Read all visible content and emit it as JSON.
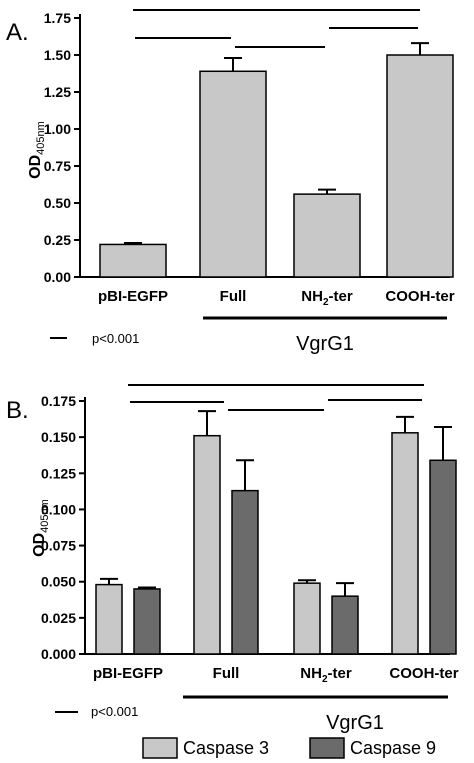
{
  "chart_data": [
    {
      "type": "bar",
      "panel_label": "A.",
      "ylabel_main": "OD",
      "ylabel_sub": "405nm",
      "ylim": [
        0,
        1.75
      ],
      "yticks": [
        "0.00",
        "0.25",
        "0.50",
        "0.75",
        "1.00",
        "1.25",
        "1.50",
        "1.75"
      ],
      "categories": [
        {
          "label": "pBI-EGFP"
        },
        {
          "label": "Full"
        },
        {
          "label": "NH",
          "sub": "2",
          "suffix": "-ter"
        },
        {
          "label": "COOH-ter"
        }
      ],
      "series": [
        {
          "values": [
            0.22,
            1.39,
            0.56,
            1.5
          ],
          "errors": [
            0.01,
            0.09,
            0.03,
            0.08
          ],
          "color": "#c8c8c8"
        }
      ],
      "group_label": "VgrG1",
      "significance_legend": "p<0.001",
      "significance_pairs": [
        [
          0,
          3
        ],
        [
          0,
          1
        ],
        [
          1,
          2
        ],
        [
          2,
          3
        ]
      ]
    },
    {
      "type": "bar",
      "panel_label": "B.",
      "ylabel_main": "OD",
      "ylabel_sub": "405nm",
      "ylim": [
        0,
        0.175
      ],
      "yticks": [
        "0.000",
        "0.025",
        "0.050",
        "0.075",
        "0.100",
        "0.125",
        "0.150",
        "0.175"
      ],
      "categories": [
        {
          "label": "pBI-EGFP"
        },
        {
          "label": "Full"
        },
        {
          "label": "NH",
          "sub": "2",
          "suffix": "-ter"
        },
        {
          "label": "COOH-ter"
        }
      ],
      "series": [
        {
          "name": "Caspase 3",
          "values": [
            0.048,
            0.151,
            0.049,
            0.153
          ],
          "errors": [
            0.004,
            0.017,
            0.002,
            0.011
          ],
          "color": "#c8c8c8"
        },
        {
          "name": "Caspase 9",
          "values": [
            0.045,
            0.113,
            0.04,
            0.134
          ],
          "errors": [
            0.001,
            0.021,
            0.009,
            0.023
          ],
          "color": "#6b6b6b"
        }
      ],
      "group_label": "VgrG1",
      "significance_legend": "p<0.001",
      "significance_pairs": [
        [
          0,
          3
        ],
        [
          0,
          1
        ],
        [
          1,
          2
        ],
        [
          2,
          3
        ]
      ]
    }
  ]
}
